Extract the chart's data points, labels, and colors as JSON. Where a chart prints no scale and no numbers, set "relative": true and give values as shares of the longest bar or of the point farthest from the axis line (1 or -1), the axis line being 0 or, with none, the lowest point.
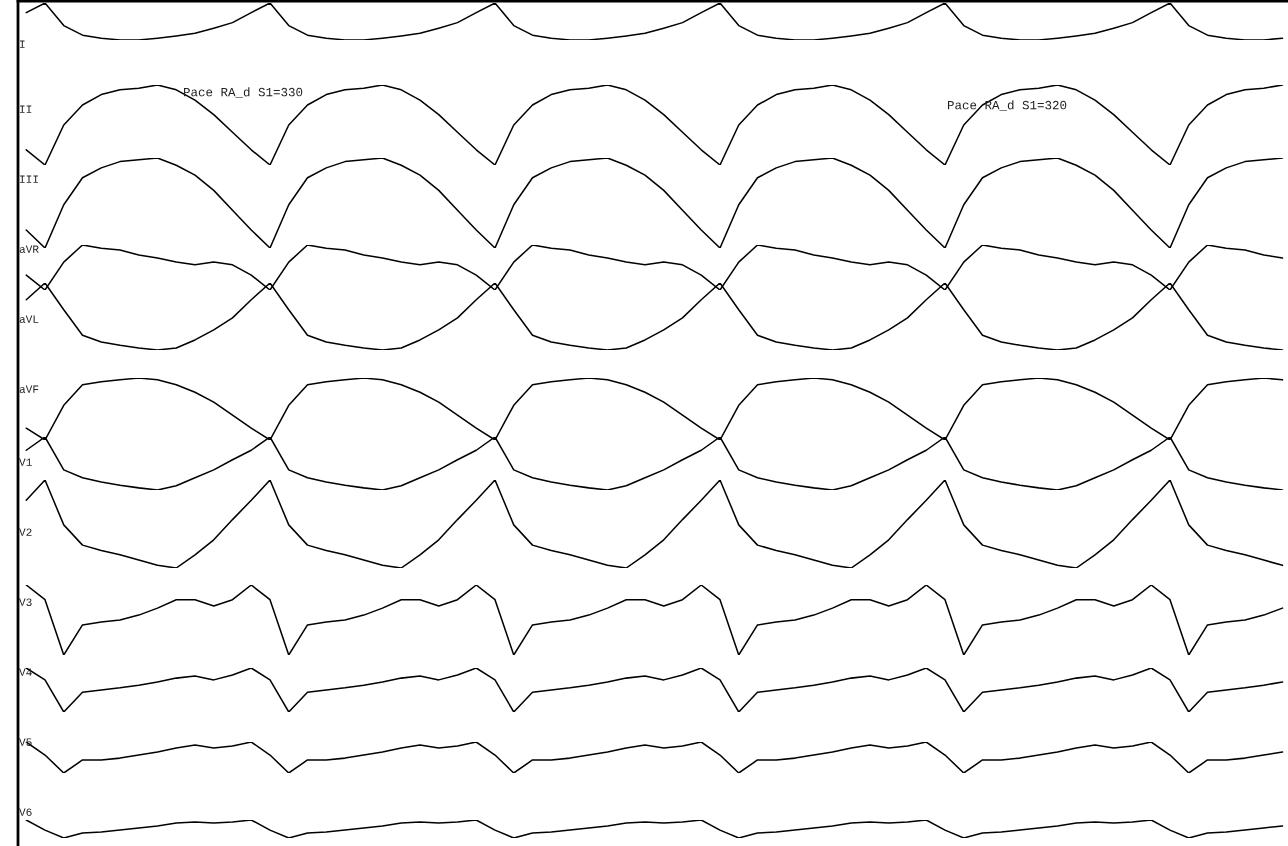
{
  "chart_data": [
    {
      "type": "line",
      "relative": true,
      "categories": [
        null,
        null,
        null,
        null,
        null,
        null,
        null,
        null,
        null,
        null,
        null,
        null,
        null,
        null,
        null,
        null,
        null,
        null,
        null,
        null,
        null,
        null,
        null,
        null,
        null,
        null,
        null,
        null,
        null,
        null,
        null,
        null,
        null,
        null,
        null,
        null,
        null,
        null,
        null,
        null,
        null,
        null,
        null,
        null,
        null,
        null,
        null,
        null,
        null,
        null,
        null,
        null,
        null,
        null,
        null,
        null,
        null,
        null,
        null,
        null,
        null,
        null,
        null,
        null,
        null,
        null,
        null,
        null
      ],
      "series": [
        {
          "name": "I",
          "color": "#000000",
          "values": [
            0.74,
            1,
            0.39,
            0.13,
            0.05,
            0,
            0,
            0.05,
            0.11,
            0.18,
            0.32,
            0.47,
            0.74,
            1,
            0.39,
            0.13,
            0.05,
            0,
            0,
            0.05,
            0.11,
            0.18,
            0.32,
            0.47,
            0.74,
            1,
            0.39,
            0.13,
            0.05,
            0,
            0,
            0.05,
            0.11,
            0.18,
            0.32,
            0.47,
            0.74,
            1,
            0.39,
            0.13,
            0.05,
            0,
            0,
            0.05,
            0.11,
            0.18,
            0.32,
            0.47,
            0.74,
            1,
            0.39,
            0.13,
            0.05,
            0,
            0,
            0.05,
            0.11,
            0.18,
            0.32,
            0.47,
            0.74,
            1,
            0.39,
            0.13,
            0.05,
            0,
            0,
            0.05
          ]
        }
      ]
    },
    {
      "type": "line",
      "relative": true,
      "categories": [
        null,
        null,
        null,
        null,
        null,
        null,
        null,
        null,
        null,
        null,
        null,
        null,
        null,
        null,
        null,
        null,
        null,
        null,
        null,
        null,
        null,
        null,
        null,
        null,
        null,
        null,
        null,
        null,
        null,
        null,
        null,
        null,
        null,
        null,
        null,
        null,
        null,
        null,
        null,
        null,
        null,
        null,
        null,
        null,
        null,
        null,
        null,
        null,
        null,
        null,
        null,
        null,
        null,
        null,
        null,
        null,
        null,
        null,
        null,
        null,
        null,
        null,
        null,
        null,
        null,
        null,
        null,
        null
      ],
      "annotations": [
        "Pace RA_d S1=330",
        "Pace RA_d S1=320"
      ],
      "series": [
        {
          "name": "II",
          "color": "#000000",
          "values": [
            0.19,
            0,
            0.5,
            0.75,
            0.88,
            0.94,
            0.96,
            1,
            0.94,
            0.81,
            0.63,
            0.41,
            0.19,
            0,
            0.5,
            0.75,
            0.88,
            0.94,
            0.96,
            1,
            0.94,
            0.81,
            0.63,
            0.41,
            0.19,
            0,
            0.5,
            0.75,
            0.88,
            0.94,
            0.96,
            1,
            0.94,
            0.81,
            0.63,
            0.41,
            0.19,
            0,
            0.5,
            0.75,
            0.88,
            0.94,
            0.96,
            1,
            0.94,
            0.81,
            0.63,
            0.41,
            0.19,
            0,
            0.5,
            0.75,
            0.88,
            0.94,
            0.96,
            1,
            0.94,
            0.81,
            0.63,
            0.41,
            0.19,
            0,
            0.5,
            0.75,
            0.88,
            0.94,
            0.96,
            1
          ]
        }
      ]
    },
    {
      "type": "line",
      "relative": true,
      "categories": [
        null,
        null,
        null,
        null,
        null,
        null,
        null,
        null,
        null,
        null,
        null,
        null,
        null,
        null,
        null,
        null,
        null,
        null,
        null,
        null,
        null,
        null,
        null,
        null,
        null,
        null,
        null,
        null,
        null,
        null,
        null,
        null,
        null,
        null,
        null,
        null,
        null,
        null,
        null,
        null,
        null,
        null,
        null,
        null,
        null,
        null,
        null,
        null,
        null,
        null,
        null,
        null,
        null,
        null,
        null,
        null,
        null,
        null,
        null,
        null,
        null,
        null,
        null,
        null,
        null,
        null,
        null,
        null
      ],
      "series": [
        {
          "name": "III",
          "color": "#000000",
          "values": [
            0.2,
            0,
            0.48,
            0.78,
            0.89,
            0.96,
            0.98,
            1,
            0.92,
            0.81,
            0.64,
            0.42,
            0.2,
            0,
            0.48,
            0.78,
            0.89,
            0.96,
            0.98,
            1,
            0.92,
            0.81,
            0.64,
            0.42,
            0.2,
            0,
            0.48,
            0.78,
            0.89,
            0.96,
            0.98,
            1,
            0.92,
            0.81,
            0.64,
            0.42,
            0.2,
            0,
            0.48,
            0.78,
            0.89,
            0.96,
            0.98,
            1,
            0.92,
            0.81,
            0.64,
            0.42,
            0.2,
            0,
            0.48,
            0.78,
            0.89,
            0.96,
            0.98,
            1,
            0.92,
            0.81,
            0.64,
            0.42,
            0.2,
            0,
            0.48,
            0.78,
            0.89,
            0.96,
            0.98,
            1
          ]
        }
      ]
    },
    {
      "type": "line",
      "relative": true,
      "categories": [
        null,
        null,
        null,
        null,
        null,
        null,
        null,
        null,
        null,
        null,
        null,
        null,
        null,
        null,
        null,
        null,
        null,
        null,
        null,
        null,
        null,
        null,
        null,
        null,
        null,
        null,
        null,
        null,
        null,
        null,
        null,
        null,
        null,
        null,
        null,
        null,
        null,
        null,
        null,
        null,
        null,
        null,
        null,
        null,
        null,
        null,
        null,
        null,
        null,
        null,
        null,
        null,
        null,
        null,
        null,
        null,
        null,
        null,
        null,
        null,
        null,
        null,
        null,
        null,
        null,
        null,
        null,
        null
      ],
      "series": [
        {
          "name": "aVR",
          "color": "#000000",
          "values": [
            0.33,
            0,
            0.62,
            1,
            0.93,
            0.89,
            0.78,
            0.71,
            0.62,
            0.56,
            0.62,
            0.56,
            0.33,
            0,
            0.62,
            1,
            0.93,
            0.89,
            0.78,
            0.71,
            0.62,
            0.56,
            0.62,
            0.56,
            0.33,
            0,
            0.62,
            1,
            0.93,
            0.89,
            0.78,
            0.71,
            0.62,
            0.56,
            0.62,
            0.56,
            0.33,
            0,
            0.62,
            1,
            0.93,
            0.89,
            0.78,
            0.71,
            0.62,
            0.56,
            0.62,
            0.56,
            0.33,
            0,
            0.62,
            1,
            0.93,
            0.89,
            0.78,
            0.71,
            0.62,
            0.56,
            0.62,
            0.56,
            0.33,
            0,
            0.62,
            1,
            0.93,
            0.89,
            0.78,
            0.71
          ]
        }
      ]
    },
    {
      "type": "line",
      "relative": true,
      "categories": [
        null,
        null,
        null,
        null,
        null,
        null,
        null,
        null,
        null,
        null,
        null,
        null,
        null,
        null,
        null,
        null,
        null,
        null,
        null,
        null,
        null,
        null,
        null,
        null,
        null,
        null,
        null,
        null,
        null,
        null,
        null,
        null,
        null,
        null,
        null,
        null,
        null,
        null,
        null,
        null,
        null,
        null,
        null,
        null,
        null,
        null,
        null,
        null,
        null,
        null,
        null,
        null,
        null,
        null,
        null,
        null,
        null,
        null,
        null,
        null,
        null,
        null,
        null,
        null,
        null,
        null,
        null,
        null
      ],
      "series": [
        {
          "name": "aVL",
          "color": "#000000",
          "values": [
            0.75,
            1,
            0.6,
            0.22,
            0.12,
            0.07,
            0.03,
            0,
            0.03,
            0.15,
            0.3,
            0.48,
            0.75,
            1,
            0.6,
            0.22,
            0.12,
            0.07,
            0.03,
            0,
            0.03,
            0.15,
            0.3,
            0.48,
            0.75,
            1,
            0.6,
            0.22,
            0.12,
            0.07,
            0.03,
            0,
            0.03,
            0.15,
            0.3,
            0.48,
            0.75,
            1,
            0.6,
            0.22,
            0.12,
            0.07,
            0.03,
            0,
            0.03,
            0.15,
            0.3,
            0.48,
            0.75,
            1,
            0.6,
            0.22,
            0.12,
            0.07,
            0.03,
            0,
            0.03,
            0.15,
            0.3,
            0.48,
            0.75,
            1,
            0.6,
            0.22,
            0.12,
            0.07,
            0.03,
            0
          ]
        }
      ]
    },
    {
      "type": "line",
      "relative": true,
      "categories": [
        null,
        null,
        null,
        null,
        null,
        null,
        null,
        null,
        null,
        null,
        null,
        null,
        null,
        null,
        null,
        null,
        null,
        null,
        null,
        null,
        null,
        null,
        null,
        null,
        null,
        null,
        null,
        null,
        null,
        null,
        null,
        null,
        null,
        null,
        null,
        null,
        null,
        null,
        null,
        null,
        null,
        null,
        null,
        null,
        null,
        null,
        null,
        null,
        null,
        null,
        null,
        null,
        null,
        null,
        null,
        null,
        null,
        null,
        null,
        null,
        null,
        null,
        null,
        null,
        null,
        null,
        null,
        null
      ],
      "series": [
        {
          "name": "aVF",
          "color": "#000000",
          "values": [
            0.19,
            0,
            0.56,
            0.89,
            0.94,
            0.97,
            1,
            0.97,
            0.89,
            0.77,
            0.61,
            0.4,
            0.19,
            0,
            0.56,
            0.89,
            0.94,
            0.97,
            1,
            0.97,
            0.89,
            0.77,
            0.61,
            0.4,
            0.19,
            0,
            0.56,
            0.89,
            0.94,
            0.97,
            1,
            0.97,
            0.89,
            0.77,
            0.61,
            0.4,
            0.19,
            0,
            0.56,
            0.89,
            0.94,
            0.97,
            1,
            0.97,
            0.89,
            0.77,
            0.61,
            0.4,
            0.19,
            0,
            0.56,
            0.89,
            0.94,
            0.97,
            1,
            0.97,
            0.89,
            0.77,
            0.61,
            0.4,
            0.19,
            0,
            0.56,
            0.89,
            0.94,
            0.97,
            1,
            0.97
          ]
        }
      ]
    },
    {
      "type": "line",
      "relative": true,
      "categories": [
        null,
        null,
        null,
        null,
        null,
        null,
        null,
        null,
        null,
        null,
        null,
        null,
        null,
        null,
        null,
        null,
        null,
        null,
        null,
        null,
        null,
        null,
        null,
        null,
        null,
        null,
        null,
        null,
        null,
        null,
        null,
        null,
        null,
        null,
        null,
        null,
        null,
        null,
        null,
        null,
        null,
        null,
        null,
        null,
        null,
        null,
        null,
        null,
        null,
        null,
        null,
        null,
        null,
        null,
        null,
        null,
        null,
        null,
        null,
        null,
        null,
        null,
        null,
        null,
        null,
        null,
        null,
        null
      ],
      "series": [
        {
          "name": "V1",
          "color": "#000000",
          "values": [
            0.75,
            1,
            0.38,
            0.23,
            0.15,
            0.09,
            0.04,
            0,
            0.08,
            0.23,
            0.38,
            0.57,
            0.75,
            1,
            0.38,
            0.23,
            0.15,
            0.09,
            0.04,
            0,
            0.08,
            0.23,
            0.38,
            0.57,
            0.75,
            1,
            0.38,
            0.23,
            0.15,
            0.09,
            0.04,
            0,
            0.08,
            0.23,
            0.38,
            0.57,
            0.75,
            1,
            0.38,
            0.23,
            0.15,
            0.09,
            0.04,
            0,
            0.08,
            0.23,
            0.38,
            0.57,
            0.75,
            1,
            0.38,
            0.23,
            0.15,
            0.09,
            0.04,
            0,
            0.08,
            0.23,
            0.38,
            0.57,
            0.75,
            1,
            0.38,
            0.23,
            0.15,
            0.09,
            0.04,
            0
          ]
        }
      ]
    },
    {
      "type": "line",
      "relative": true,
      "categories": [
        null,
        null,
        null,
        null,
        null,
        null,
        null,
        null,
        null,
        null,
        null,
        null,
        null,
        null,
        null,
        null,
        null,
        null,
        null,
        null,
        null,
        null,
        null,
        null,
        null,
        null,
        null,
        null,
        null,
        null,
        null,
        null,
        null,
        null,
        null,
        null,
        null,
        null,
        null,
        null,
        null,
        null,
        null,
        null,
        null,
        null,
        null,
        null,
        null,
        null,
        null,
        null,
        null,
        null,
        null,
        null,
        null,
        null,
        null,
        null,
        null,
        null,
        null,
        null,
        null,
        null,
        null,
        null
      ],
      "series": [
        {
          "name": "V2",
          "color": "#000000",
          "values": [
            0.77,
            1,
            0.49,
            0.26,
            0.2,
            0.15,
            0.09,
            0.03,
            0,
            0.15,
            0.32,
            0.55,
            0.77,
            1,
            0.49,
            0.26,
            0.2,
            0.15,
            0.09,
            0.03,
            0,
            0.15,
            0.32,
            0.55,
            0.77,
            1,
            0.49,
            0.26,
            0.2,
            0.15,
            0.09,
            0.03,
            0,
            0.15,
            0.32,
            0.55,
            0.77,
            1,
            0.49,
            0.26,
            0.2,
            0.15,
            0.09,
            0.03,
            0,
            0.15,
            0.32,
            0.55,
            0.77,
            1,
            0.49,
            0.26,
            0.2,
            0.15,
            0.09,
            0.03,
            0,
            0.15,
            0.32,
            0.55,
            0.77,
            1,
            0.49,
            0.26,
            0.2,
            0.15,
            0.09,
            0.03
          ]
        }
      ]
    },
    {
      "type": "line",
      "relative": true,
      "categories": [
        null,
        null,
        null,
        null,
        null,
        null,
        null,
        null,
        null,
        null,
        null,
        null,
        null,
        null,
        null,
        null,
        null,
        null,
        null,
        null,
        null,
        null,
        null,
        null,
        null,
        null,
        null,
        null,
        null,
        null,
        null,
        null,
        null,
        null,
        null,
        null,
        null,
        null,
        null,
        null,
        null,
        null,
        null,
        null,
        null,
        null,
        null,
        null,
        null,
        null,
        null,
        null,
        null,
        null,
        null,
        null,
        null,
        null,
        null,
        null,
        null,
        null,
        null,
        null,
        null,
        null,
        null,
        null
      ],
      "series": [
        {
          "name": "V3",
          "color": "#000000",
          "values": [
            1,
            0.79,
            0,
            0.43,
            0.47,
            0.5,
            0.57,
            0.67,
            0.79,
            0.79,
            0.7,
            0.79,
            1,
            0.79,
            0,
            0.43,
            0.47,
            0.5,
            0.57,
            0.67,
            0.79,
            0.79,
            0.7,
            0.79,
            1,
            0.79,
            0,
            0.43,
            0.47,
            0.5,
            0.57,
            0.67,
            0.79,
            0.79,
            0.7,
            0.79,
            1,
            0.79,
            0,
            0.43,
            0.47,
            0.5,
            0.57,
            0.67,
            0.79,
            0.79,
            0.7,
            0.79,
            1,
            0.79,
            0,
            0.43,
            0.47,
            0.5,
            0.57,
            0.67,
            0.79,
            0.79,
            0.7,
            0.79,
            1,
            0.79,
            0,
            0.43,
            0.47,
            0.5,
            0.57,
            0.67
          ]
        }
      ]
    },
    {
      "type": "line",
      "relative": true,
      "categories": [
        null,
        null,
        null,
        null,
        null,
        null,
        null,
        null,
        null,
        null,
        null,
        null,
        null,
        null,
        null,
        null,
        null,
        null,
        null,
        null,
        null,
        null,
        null,
        null,
        null,
        null,
        null,
        null,
        null,
        null,
        null,
        null,
        null,
        null,
        null,
        null,
        null,
        null,
        null,
        null,
        null,
        null,
        null,
        null,
        null,
        null,
        null,
        null,
        null,
        null,
        null,
        null,
        null,
        null,
        null,
        null,
        null,
        null,
        null,
        null,
        null,
        null,
        null,
        null,
        null,
        null,
        null,
        null
      ],
      "series": [
        {
          "name": "V4",
          "color": "#000000",
          "values": [
            1,
            0.73,
            0,
            0.45,
            0.5,
            0.55,
            0.61,
            0.68,
            0.77,
            0.82,
            0.73,
            0.84,
            1,
            0.73,
            0,
            0.45,
            0.5,
            0.55,
            0.61,
            0.68,
            0.77,
            0.82,
            0.73,
            0.84,
            1,
            0.73,
            0,
            0.45,
            0.5,
            0.55,
            0.61,
            0.68,
            0.77,
            0.82,
            0.73,
            0.84,
            1,
            0.73,
            0,
            0.45,
            0.5,
            0.55,
            0.61,
            0.68,
            0.77,
            0.82,
            0.73,
            0.84,
            1,
            0.73,
            0,
            0.45,
            0.5,
            0.55,
            0.61,
            0.68,
            0.77,
            0.82,
            0.73,
            0.84,
            1,
            0.73,
            0,
            0.45,
            0.5,
            0.55,
            0.61,
            0.68
          ]
        }
      ]
    },
    {
      "type": "line",
      "relative": true,
      "categories": [
        null,
        null,
        null,
        null,
        null,
        null,
        null,
        null,
        null,
        null,
        null,
        null,
        null,
        null,
        null,
        null,
        null,
        null,
        null,
        null,
        null,
        null,
        null,
        null,
        null,
        null,
        null,
        null,
        null,
        null,
        null,
        null,
        null,
        null,
        null,
        null,
        null,
        null,
        null,
        null,
        null,
        null,
        null,
        null,
        null,
        null,
        null,
        null,
        null,
        null,
        null,
        null,
        null,
        null,
        null,
        null,
        null,
        null,
        null,
        null,
        null,
        null,
        null,
        null,
        null,
        null,
        null,
        null
      ],
      "series": [
        {
          "name": "V5",
          "color": "#000000",
          "values": [
            1,
            0.58,
            0,
            0.42,
            0.42,
            0.48,
            0.58,
            0.68,
            0.81,
            0.9,
            0.81,
            0.87,
            1,
            0.58,
            0,
            0.42,
            0.42,
            0.48,
            0.58,
            0.68,
            0.81,
            0.9,
            0.81,
            0.87,
            1,
            0.58,
            0,
            0.42,
            0.42,
            0.48,
            0.58,
            0.68,
            0.81,
            0.9,
            0.81,
            0.87,
            1,
            0.58,
            0,
            0.42,
            0.42,
            0.48,
            0.58,
            0.68,
            0.81,
            0.9,
            0.81,
            0.87,
            1,
            0.58,
            0,
            0.42,
            0.42,
            0.48,
            0.58,
            0.68,
            0.81,
            0.9,
            0.81,
            0.87,
            1,
            0.58,
            0,
            0.42,
            0.42,
            0.48,
            0.58,
            0.68
          ]
        }
      ]
    },
    {
      "type": "line",
      "relative": true,
      "categories": [
        null,
        null,
        null,
        null,
        null,
        null,
        null,
        null,
        null,
        null,
        null,
        null,
        null,
        null,
        null,
        null,
        null,
        null,
        null,
        null,
        null,
        null,
        null,
        null,
        null,
        null,
        null,
        null,
        null,
        null,
        null,
        null,
        null,
        null,
        null,
        null,
        null,
        null,
        null,
        null,
        null,
        null,
        null,
        null,
        null,
        null,
        null,
        null,
        null,
        null,
        null,
        null,
        null,
        null,
        null,
        null,
        null,
        null,
        null,
        null,
        null,
        null,
        null,
        null,
        null,
        null,
        null,
        null
      ],
      "series": [
        {
          "name": "V6",
          "color": "#000000",
          "values": [
            1,
            0.44,
            0,
            0.28,
            0.33,
            0.44,
            0.56,
            0.67,
            0.83,
            0.89,
            0.83,
            0.89,
            1,
            0.44,
            0,
            0.28,
            0.33,
            0.44,
            0.56,
            0.67,
            0.83,
            0.89,
            0.83,
            0.89,
            1,
            0.44,
            0,
            0.28,
            0.33,
            0.44,
            0.56,
            0.67,
            0.83,
            0.89,
            0.83,
            0.89,
            1,
            0.44,
            0,
            0.28,
            0.33,
            0.44,
            0.56,
            0.67,
            0.83,
            0.89,
            0.83,
            0.89,
            1,
            0.44,
            0,
            0.28,
            0.33,
            0.44,
            0.56,
            0.67,
            0.83,
            0.89,
            0.83,
            0.89,
            1,
            0.44,
            0,
            0.28,
            0.33,
            0.44,
            0.56,
            0.67
          ]
        }
      ]
    }
  ]
}
